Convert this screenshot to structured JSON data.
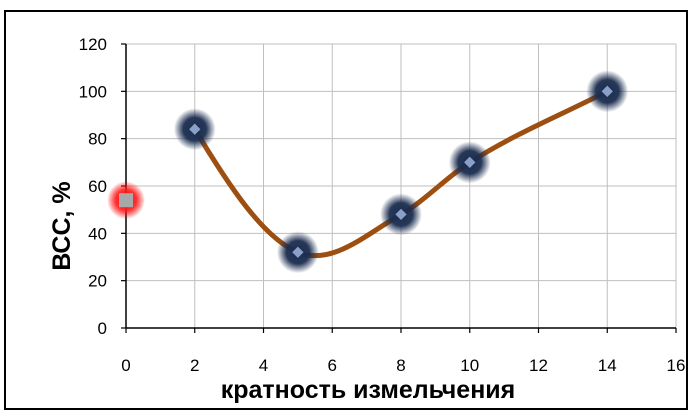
{
  "chart_data": {
    "type": "scatter",
    "xlabel": "кратность измельчения",
    "ylabel": "ВСС, %",
    "xlim": [
      0,
      16
    ],
    "ylim": [
      0,
      120
    ],
    "x_ticks": [
      0,
      2,
      4,
      6,
      8,
      10,
      12,
      14,
      16
    ],
    "y_ticks": [
      0,
      20,
      40,
      60,
      80,
      100,
      120
    ],
    "grid": true,
    "legend": "none",
    "series": [
      {
        "marker": "circle-glow",
        "color": "#1b2d4f",
        "points": [
          {
            "x": 2,
            "y": 84
          },
          {
            "x": 5,
            "y": 32
          },
          {
            "x": 8,
            "y": 48
          },
          {
            "x": 10,
            "y": 70
          },
          {
            "x": 14,
            "y": 100
          }
        ]
      },
      {
        "marker": "square-glow",
        "color": "#e00000",
        "points": [
          {
            "x": 0,
            "y": 54
          }
        ]
      }
    ],
    "trendline": {
      "color": "#9c4f10",
      "x_range": [
        2,
        14
      ],
      "through": [
        {
          "x": 2,
          "y": 84
        },
        {
          "x": 5,
          "y": 32
        },
        {
          "x": 8,
          "y": 48
        },
        {
          "x": 10,
          "y": 70
        },
        {
          "x": 14,
          "y": 100
        }
      ]
    }
  }
}
